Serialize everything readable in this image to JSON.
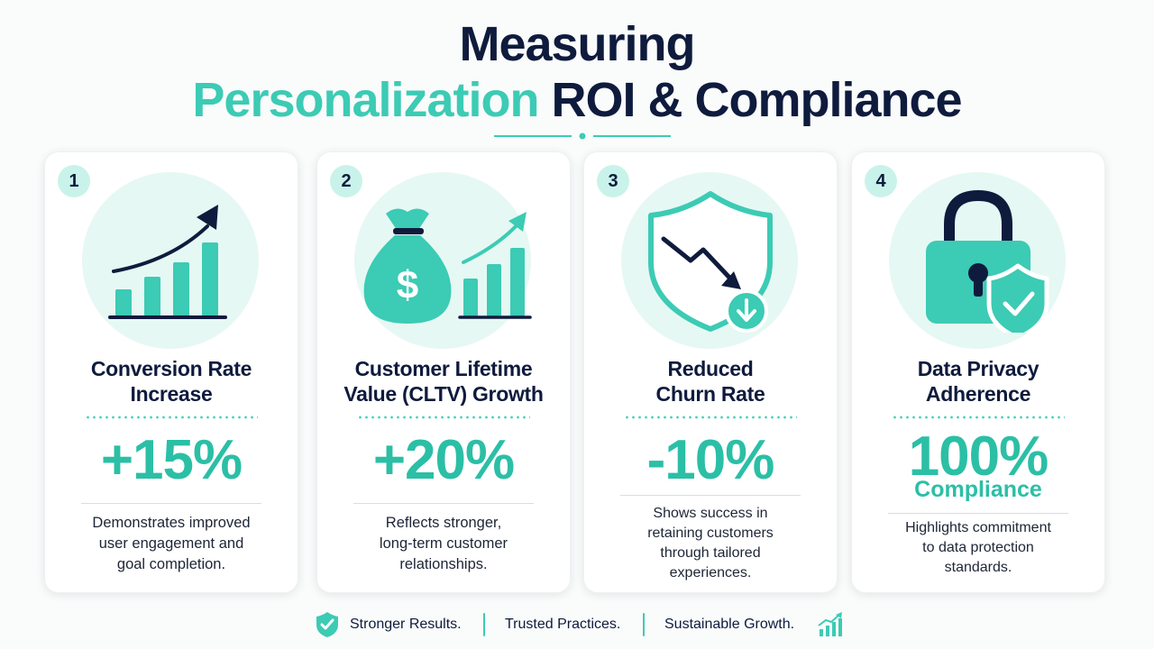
{
  "header": {
    "title_line1": "Measuring",
    "title_accent": "Personalization",
    "title_rest": "ROI & Compliance"
  },
  "cards": [
    {
      "number": "1",
      "icon": "bar-chart-trend-up-icon",
      "title_line1": "Conversion Rate",
      "title_line2": "Increase",
      "metric": "+15%",
      "metric_sub": "",
      "desc_line1": "Demonstrates improved",
      "desc_line2": "user engagement and",
      "desc_line3": "goal completion.",
      "desc_line4": ""
    },
    {
      "number": "2",
      "icon": "money-bag-growth-icon",
      "title_line1": "Customer Lifetime",
      "title_line2": "Value (CLTV) Growth",
      "metric": "+20%",
      "metric_sub": "",
      "desc_line1": "Reflects stronger,",
      "desc_line2": "long-term customer",
      "desc_line3": "relationships.",
      "desc_line4": ""
    },
    {
      "number": "3",
      "icon": "shield-down-arrow-icon",
      "title_line1": "Reduced",
      "title_line2": "Churn Rate",
      "metric": "-10%",
      "metric_sub": "",
      "desc_line1": "Shows success in",
      "desc_line2": "retaining customers",
      "desc_line3": "through tailored",
      "desc_line4": "experiences."
    },
    {
      "number": "4",
      "icon": "padlock-shield-check-icon",
      "title_line1": "Data Privacy",
      "title_line2": "Adherence",
      "metric": "100%",
      "metric_sub": "Compliance",
      "desc_line1": "Highlights commitment",
      "desc_line2": "to data protection",
      "desc_line3": "standards.",
      "desc_line4": ""
    }
  ],
  "footer": {
    "item1": "Stronger Results.",
    "item2": "Trusted Practices.",
    "item3": "Sustainable Growth."
  },
  "colors": {
    "accent": "#3ccbb4",
    "accent_dark": "#2bbfa6",
    "navy": "#0f1b3d",
    "badge_bg": "#c9f3ea",
    "halo_bg": "#e6f8f4"
  }
}
